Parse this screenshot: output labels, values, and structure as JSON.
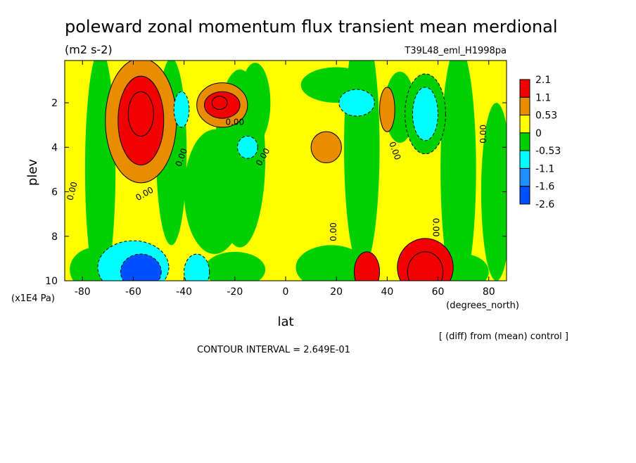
{
  "chart_data": {
    "type": "heatmap",
    "title": "poleward zonal momentum flux transient mean merdional",
    "units": "(m2 s-2)",
    "run_label": "T39L48_eml_H1998pa",
    "xlabel": "lat",
    "xunits": "(degrees_north)",
    "ylabel": "plev",
    "yunits": "(x1E4 Pa)",
    "xlim": [
      -87,
      87
    ],
    "ylim": [
      0.1,
      10
    ],
    "y_inverted": true,
    "xticks": [
      -80,
      -60,
      -40,
      -20,
      0,
      20,
      40,
      60,
      80
    ],
    "yticks": [
      2,
      4,
      6,
      8,
      10
    ],
    "diff_note": "[ (diff) from (mean) control ]",
    "contour_interval_text": "CONTOUR INTERVAL = 2.649E-01",
    "contour_labels": [
      "0.00"
    ],
    "colorbar": {
      "labels": [
        "2.1",
        "1.1",
        "0.53",
        "0",
        "-0.53",
        "-1.1",
        "-1.6",
        "-2.6"
      ],
      "colors": [
        "#f00000",
        "#e88c00",
        "#ffff00",
        "#00d000",
        "#00ffff",
        "#1e90ff",
        "#0050ff"
      ]
    },
    "features": [
      {
        "lat": -57,
        "plev": 2.5,
        "value": 2.1,
        "rx": 5,
        "ry": 1.0
      },
      {
        "lat": -57,
        "plev": 2.8,
        "value": 1.1,
        "rx": 9,
        "ry": 2.0
      },
      {
        "lat": -57,
        "plev": 2.8,
        "value": 0.53,
        "rx": 14,
        "ry": 2.8
      },
      {
        "lat": -26,
        "plev": 2.0,
        "value": 1.6,
        "rx": 3,
        "ry": 0.3
      },
      {
        "lat": -25,
        "plev": 2.1,
        "value": 1.1,
        "rx": 7,
        "ry": 0.6
      },
      {
        "lat": -25,
        "plev": 2.1,
        "value": 0.53,
        "rx": 10,
        "ry": 1.0
      },
      {
        "lat": -41,
        "plev": 2.3,
        "value": -0.8,
        "rx": 3,
        "ry": 0.8
      },
      {
        "lat": -15,
        "plev": 4.0,
        "value": -0.8,
        "rx": 4,
        "ry": 0.5
      },
      {
        "lat": 16,
        "plev": 4.0,
        "value": 0.8,
        "rx": 6,
        "ry": 0.7
      },
      {
        "lat": 28,
        "plev": 2.0,
        "value": -0.8,
        "rx": 7,
        "ry": 0.6
      },
      {
        "lat": 40,
        "plev": 2.3,
        "value": 0.8,
        "rx": 3,
        "ry": 1.0
      },
      {
        "lat": 55,
        "plev": 2.5,
        "value": -1.1,
        "rx": 5,
        "ry": 1.2
      },
      {
        "lat": 55,
        "plev": 2.5,
        "value": -0.53,
        "rx": 8,
        "ry": 1.8
      },
      {
        "lat": -57,
        "plev": 9.6,
        "value": -2.0,
        "rx": 8,
        "ry": 0.8
      },
      {
        "lat": -60,
        "plev": 9.4,
        "value": -1.1,
        "rx": 14,
        "ry": 1.2
      },
      {
        "lat": -35,
        "plev": 9.6,
        "value": -0.8,
        "rx": 5,
        "ry": 0.8
      },
      {
        "lat": 32,
        "plev": 9.6,
        "value": 1.1,
        "rx": 5,
        "ry": 0.9
      },
      {
        "lat": 55,
        "plev": 9.6,
        "value": 2.1,
        "rx": 7,
        "ry": 0.9
      },
      {
        "lat": 55,
        "plev": 9.4,
        "value": 1.1,
        "rx": 11,
        "ry": 1.3
      }
    ]
  }
}
